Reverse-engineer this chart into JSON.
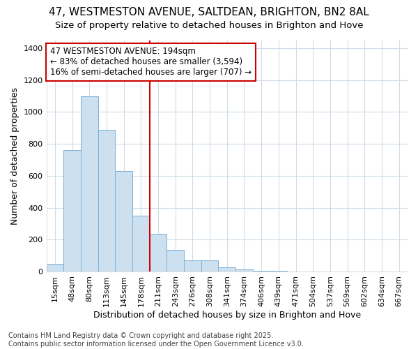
{
  "title_line1": "47, WESTMESTON AVENUE, SALTDEAN, BRIGHTON, BN2 8AL",
  "title_line2": "Size of property relative to detached houses in Brighton and Hove",
  "xlabel": "Distribution of detached houses by size in Brighton and Hove",
  "ylabel": "Number of detached properties",
  "categories": [
    "15sqm",
    "48sqm",
    "80sqm",
    "113sqm",
    "145sqm",
    "178sqm",
    "211sqm",
    "243sqm",
    "276sqm",
    "308sqm",
    "341sqm",
    "374sqm",
    "406sqm",
    "439sqm",
    "471sqm",
    "504sqm",
    "537sqm",
    "569sqm",
    "602sqm",
    "634sqm",
    "667sqm"
  ],
  "values": [
    50,
    760,
    1100,
    890,
    630,
    350,
    235,
    135,
    70,
    70,
    25,
    15,
    5,
    5,
    2,
    1,
    1,
    0,
    0,
    1,
    0
  ],
  "bar_color": "#cce0f0",
  "bar_edgecolor": "#7ab0d8",
  "vline_x_index": 5,
  "annotation_line1": "47 WESTMESTON AVENUE: 194sqm",
  "annotation_line2": "← 83% of detached houses are smaller (3,594)",
  "annotation_line3": "16% of semi-detached houses are larger (707) →",
  "annotation_box_color": "#ffffff",
  "annotation_border_color": "#cc0000",
  "vline_color": "#cc0000",
  "ylim": [
    0,
    1450
  ],
  "yticks": [
    0,
    200,
    400,
    600,
    800,
    1000,
    1200,
    1400
  ],
  "footer_line1": "Contains HM Land Registry data © Crown copyright and database right 2025.",
  "footer_line2": "Contains public sector information licensed under the Open Government Licence v3.0.",
  "background_color": "#ffffff",
  "plot_background": "#ffffff",
  "grid_color": "#d0dce8",
  "title_fontsize": 11,
  "subtitle_fontsize": 9.5,
  "axis_label_fontsize": 9,
  "tick_fontsize": 8,
  "annotation_fontsize": 8.5,
  "footer_fontsize": 7
}
